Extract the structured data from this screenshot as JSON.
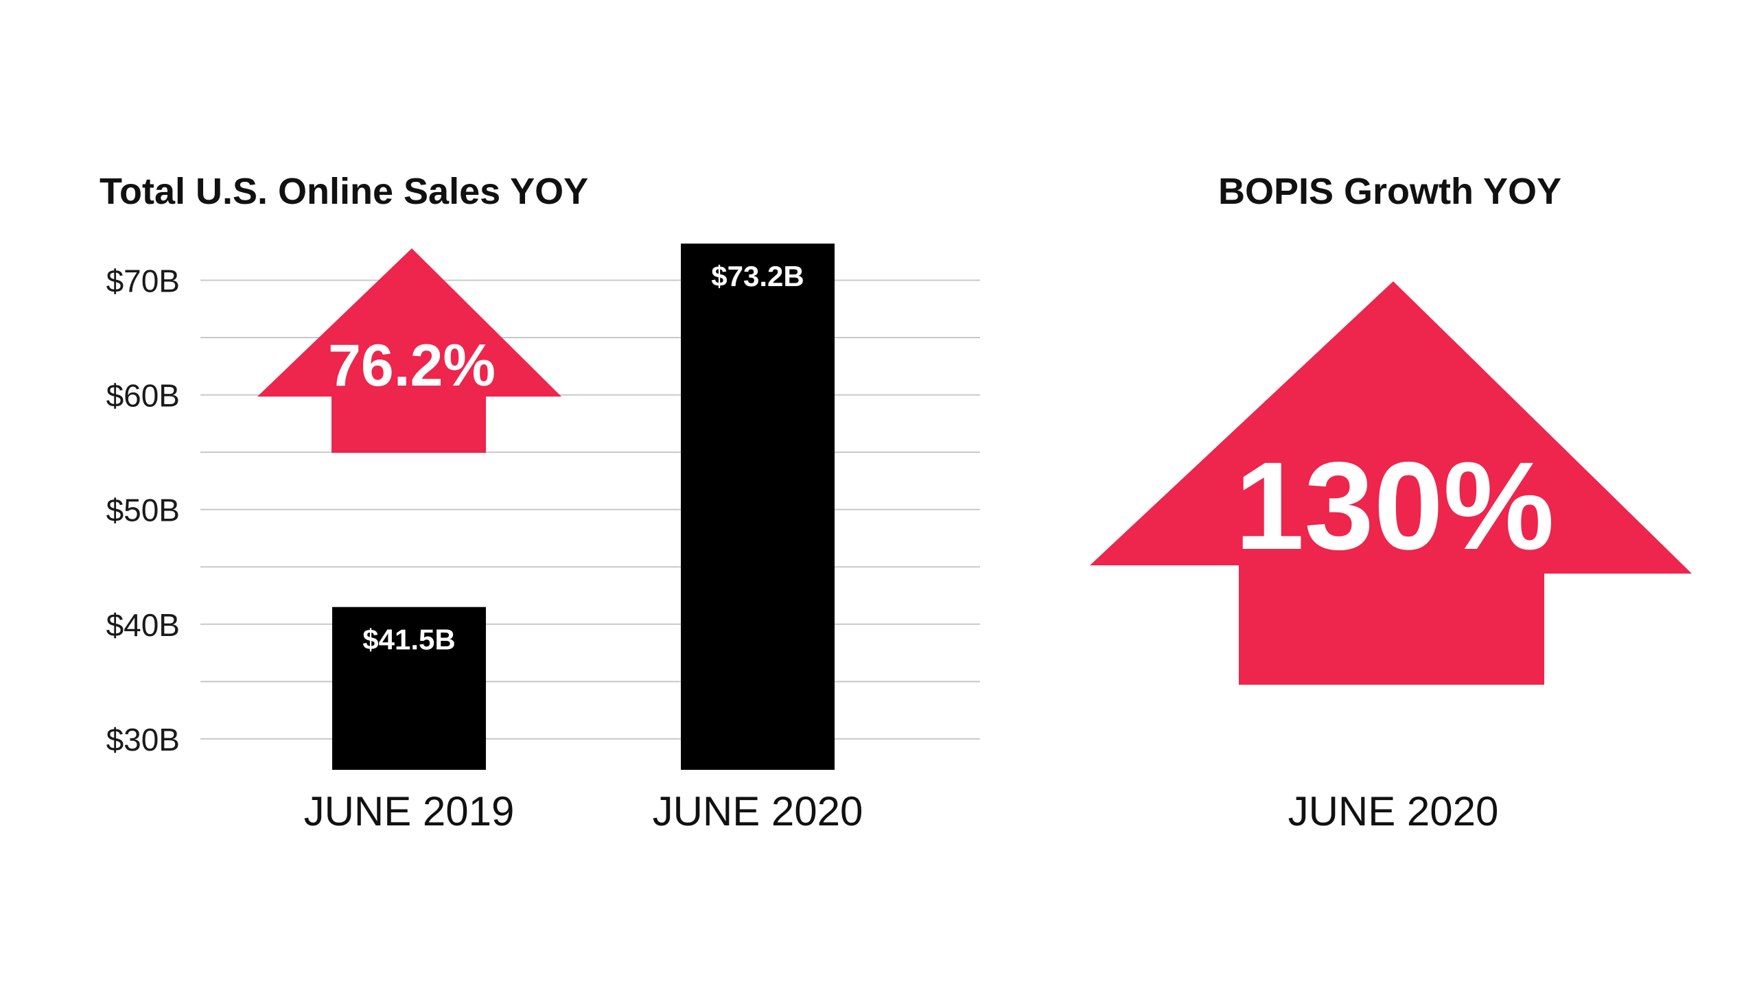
{
  "colors": {
    "background": "#ffffff",
    "bar": "#000000",
    "arrow": "#ee254c",
    "grid": "#c8c8c8",
    "text": "#111111"
  },
  "chart_data": [
    {
      "type": "bar",
      "title": "Total U.S. Online Sales YOY",
      "xlabel": "",
      "ylabel": "",
      "categories": [
        "JUNE 2019",
        "JUNE 2020"
      ],
      "values": [
        41.5,
        73.2
      ],
      "value_labels": [
        "$41.5B",
        "$73.2B"
      ],
      "ylim": [
        27.3,
        73.2
      ],
      "yticks": [
        30,
        40,
        50,
        60,
        70
      ],
      "ytick_labels": [
        "$30B",
        "$40B",
        "$50B",
        "$60B",
        "$70B"
      ],
      "grid": true,
      "annotation": {
        "shape": "up-arrow",
        "icon": "up-arrow-icon",
        "text": "76.2%"
      }
    },
    {
      "type": "other",
      "title": "BOPIS Growth YOY",
      "categories": [
        "JUNE 2020"
      ],
      "annotation": {
        "shape": "up-arrow",
        "icon": "up-arrow-icon",
        "text": "130%"
      }
    }
  ]
}
